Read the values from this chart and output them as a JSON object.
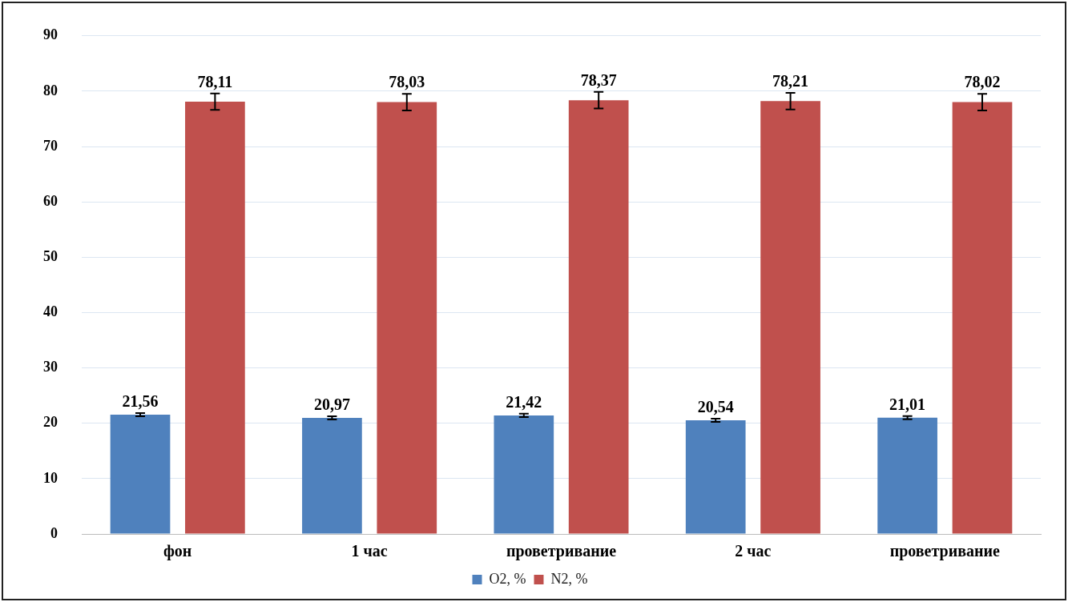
{
  "chart_data": {
    "type": "bar",
    "categories": [
      "фон",
      "1 час",
      "проветривание",
      "2 час",
      "проветривание"
    ],
    "series": [
      {
        "name": "O2, %",
        "color": "#4f81bd",
        "values": [
          21.56,
          20.97,
          21.42,
          20.54,
          21.01
        ],
        "errors": [
          0.3,
          0.3,
          0.3,
          0.3,
          0.3
        ],
        "value_labels": [
          "21,56",
          "20,97",
          "21,42",
          "20,54",
          "21,01"
        ]
      },
      {
        "name": "N2, %",
        "color": "#c0504d",
        "values": [
          78.11,
          78.03,
          78.37,
          78.21,
          78.02
        ],
        "errors": [
          1.5,
          1.5,
          1.5,
          1.5,
          1.5
        ],
        "value_labels": [
          "78,11",
          "78,03",
          "78,37",
          "78,21",
          "78,02"
        ]
      }
    ],
    "ylim": [
      0,
      90
    ],
    "yticks": [
      0,
      10,
      20,
      30,
      40,
      50,
      60,
      70,
      80,
      90
    ],
    "grid": "y",
    "legend": "bottom"
  }
}
